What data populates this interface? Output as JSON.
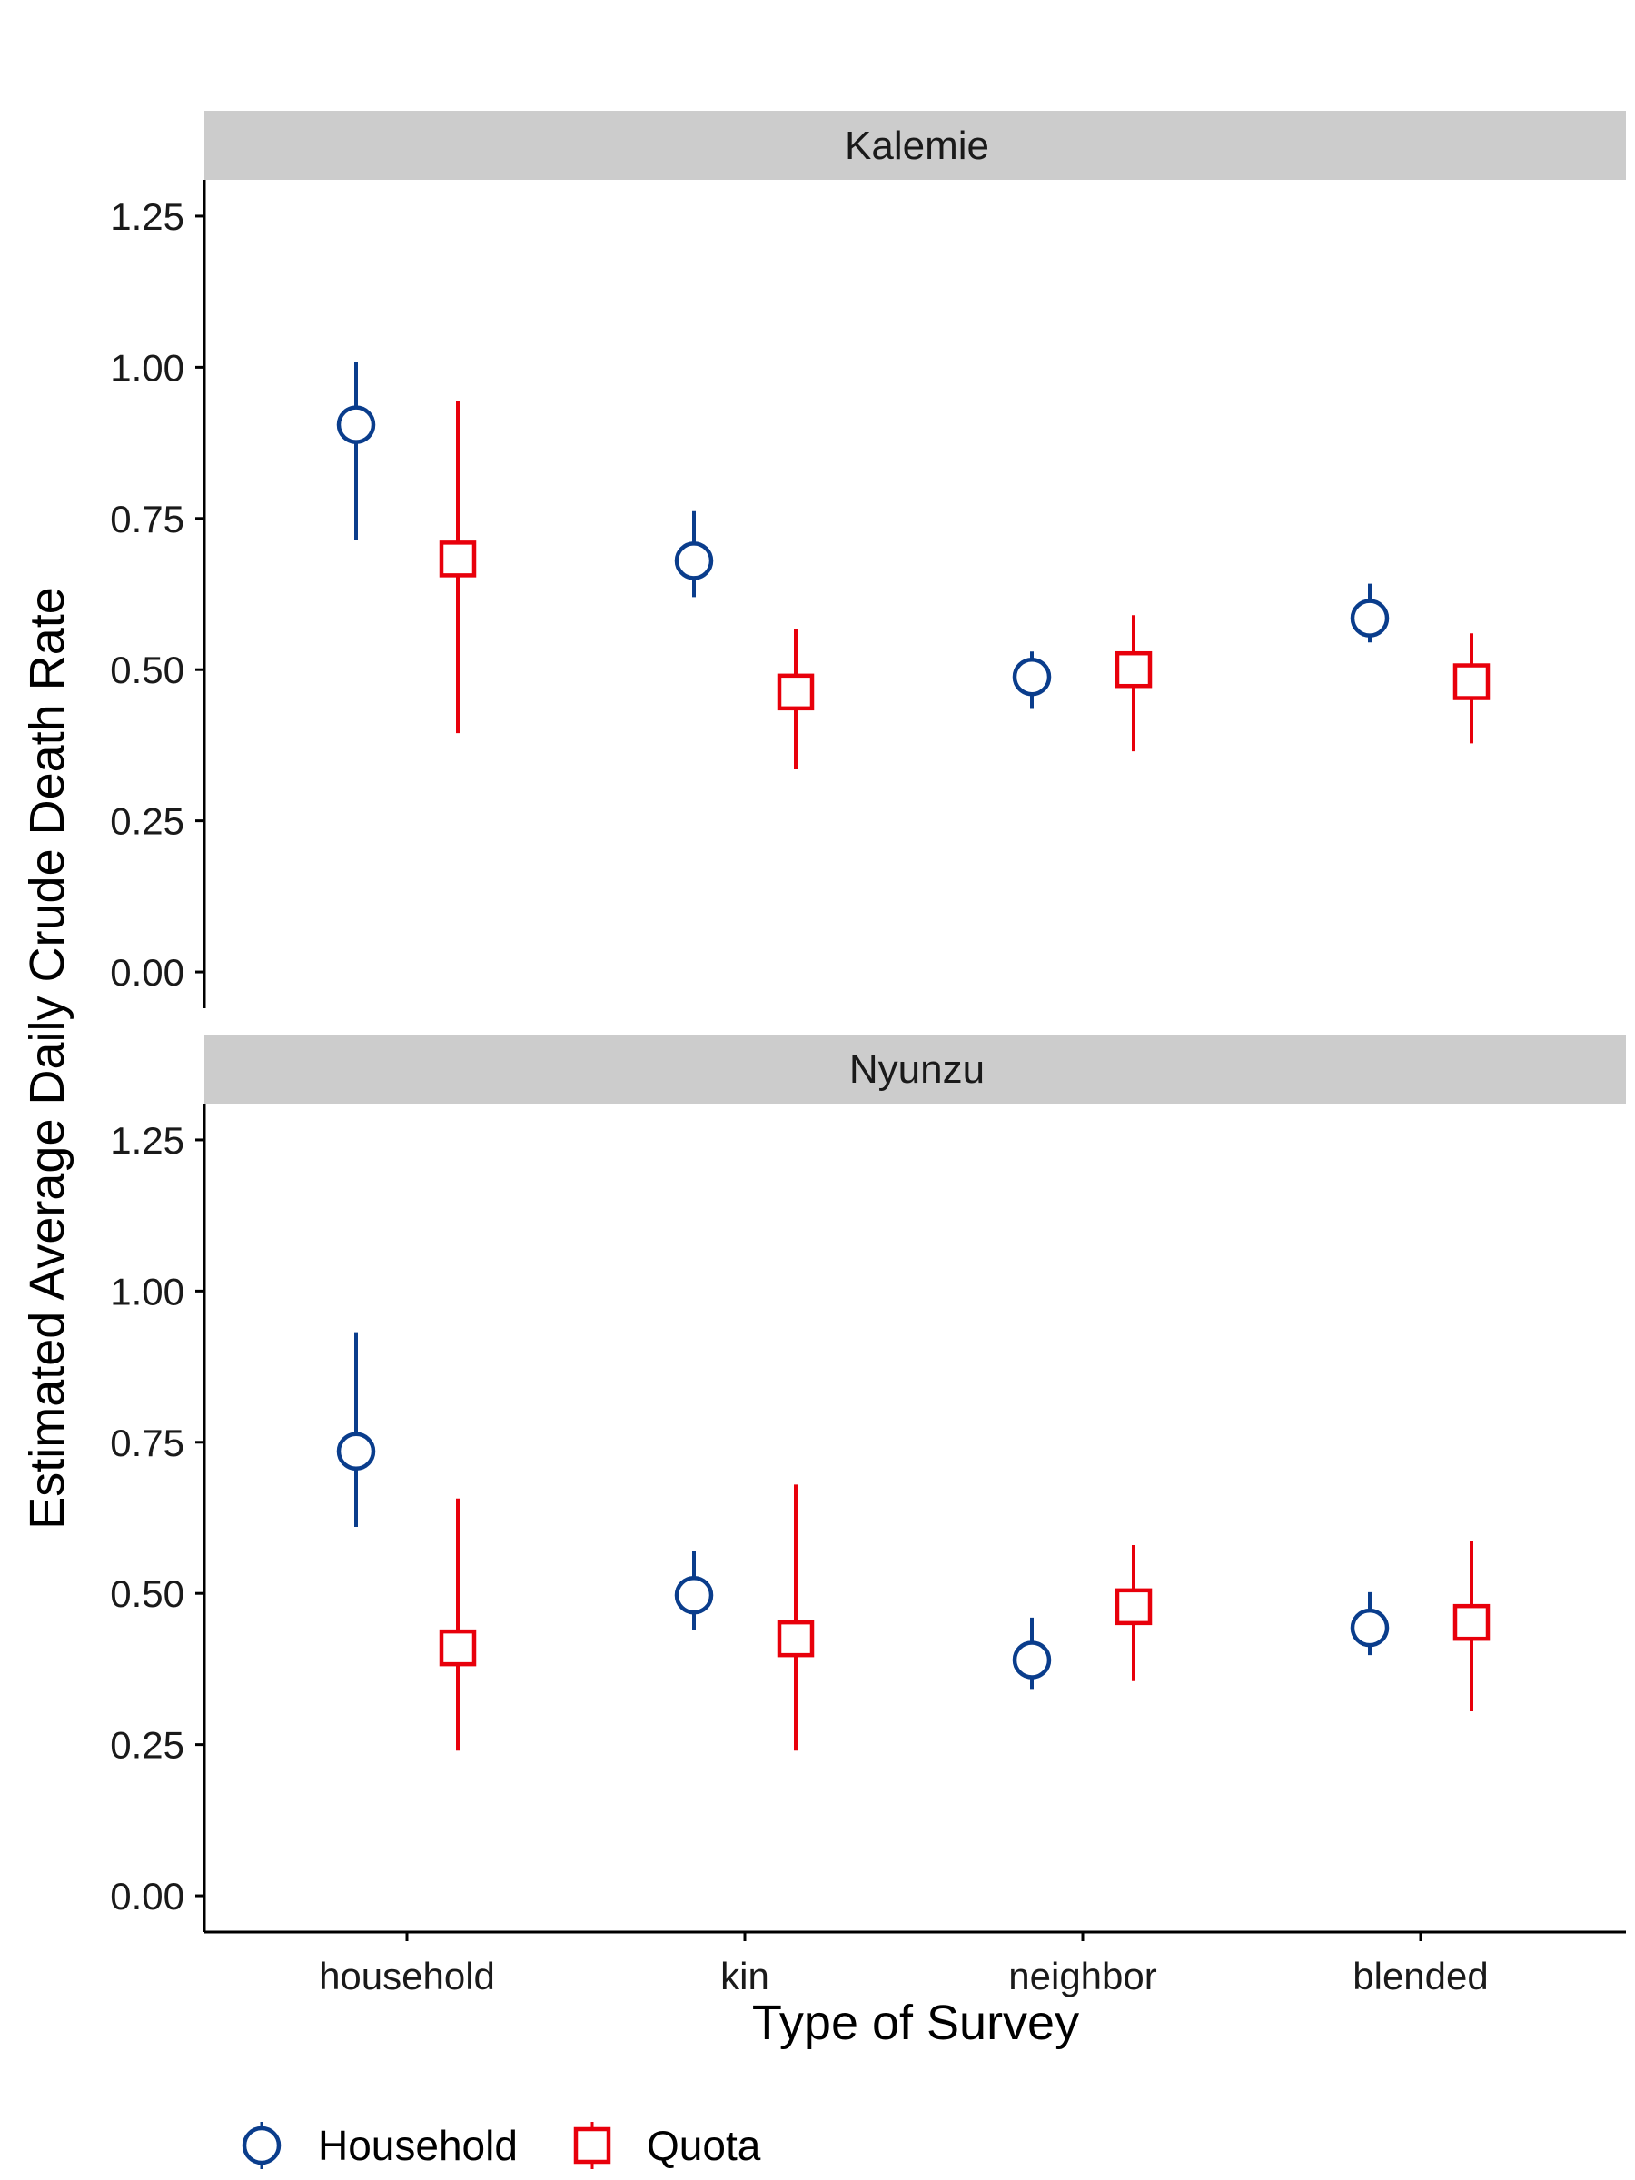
{
  "chart_data": {
    "type": "scatter",
    "description_type": "point-range",
    "ylabel": "Estimated Average Daily Crude Death Rate",
    "xlabel": "Type of Survey",
    "categories": [
      "household",
      "kin",
      "neighbor",
      "blended"
    ],
    "ylim": [
      -0.06,
      1.31
    ],
    "yticks": [
      0,
      0.25,
      0.5,
      0.75,
      1,
      1.25
    ],
    "ytick_labels": [
      "0.00",
      "0.25",
      "0.50",
      "0.75",
      "1.00",
      "1.25"
    ],
    "grid": false,
    "legend_position": "bottom-left",
    "series": [
      {
        "name": "Household",
        "color": "#0a3d8c",
        "marker": "circle"
      },
      {
        "name": "Quota",
        "color": "#e8000b",
        "marker": "square"
      }
    ],
    "panels": [
      {
        "title": "Kalemie",
        "data": {
          "Household": [
            {
              "category": "household",
              "y": 0.905,
              "low": 0.715,
              "high": 1.008
            },
            {
              "category": "kin",
              "y": 0.68,
              "low": 0.62,
              "high": 0.762
            },
            {
              "category": "neighbor",
              "y": 0.488,
              "low": 0.435,
              "high": 0.53
            },
            {
              "category": "blended",
              "y": 0.585,
              "low": 0.545,
              "high": 0.642
            }
          ],
          "Quota": [
            {
              "category": "household",
              "y": 0.683,
              "low": 0.395,
              "high": 0.945
            },
            {
              "category": "kin",
              "y": 0.463,
              "low": 0.335,
              "high": 0.568
            },
            {
              "category": "neighbor",
              "y": 0.5,
              "low": 0.365,
              "high": 0.59
            },
            {
              "category": "blended",
              "y": 0.48,
              "low": 0.378,
              "high": 0.56
            }
          ]
        }
      },
      {
        "title": "Nyunzu",
        "data": {
          "Household": [
            {
              "category": "household",
              "y": 0.735,
              "low": 0.61,
              "high": 0.932
            },
            {
              "category": "kin",
              "y": 0.497,
              "low": 0.44,
              "high": 0.57
            },
            {
              "category": "neighbor",
              "y": 0.39,
              "low": 0.342,
              "high": 0.46
            },
            {
              "category": "blended",
              "y": 0.443,
              "low": 0.398,
              "high": 0.502
            }
          ],
          "Quota": [
            {
              "category": "household",
              "y": 0.41,
              "low": 0.24,
              "high": 0.657
            },
            {
              "category": "kin",
              "y": 0.425,
              "low": 0.24,
              "high": 0.68
            },
            {
              "category": "neighbor",
              "y": 0.478,
              "low": 0.355,
              "high": 0.58
            },
            {
              "category": "blended",
              "y": 0.452,
              "low": 0.305,
              "high": 0.587
            }
          ]
        }
      }
    ]
  }
}
